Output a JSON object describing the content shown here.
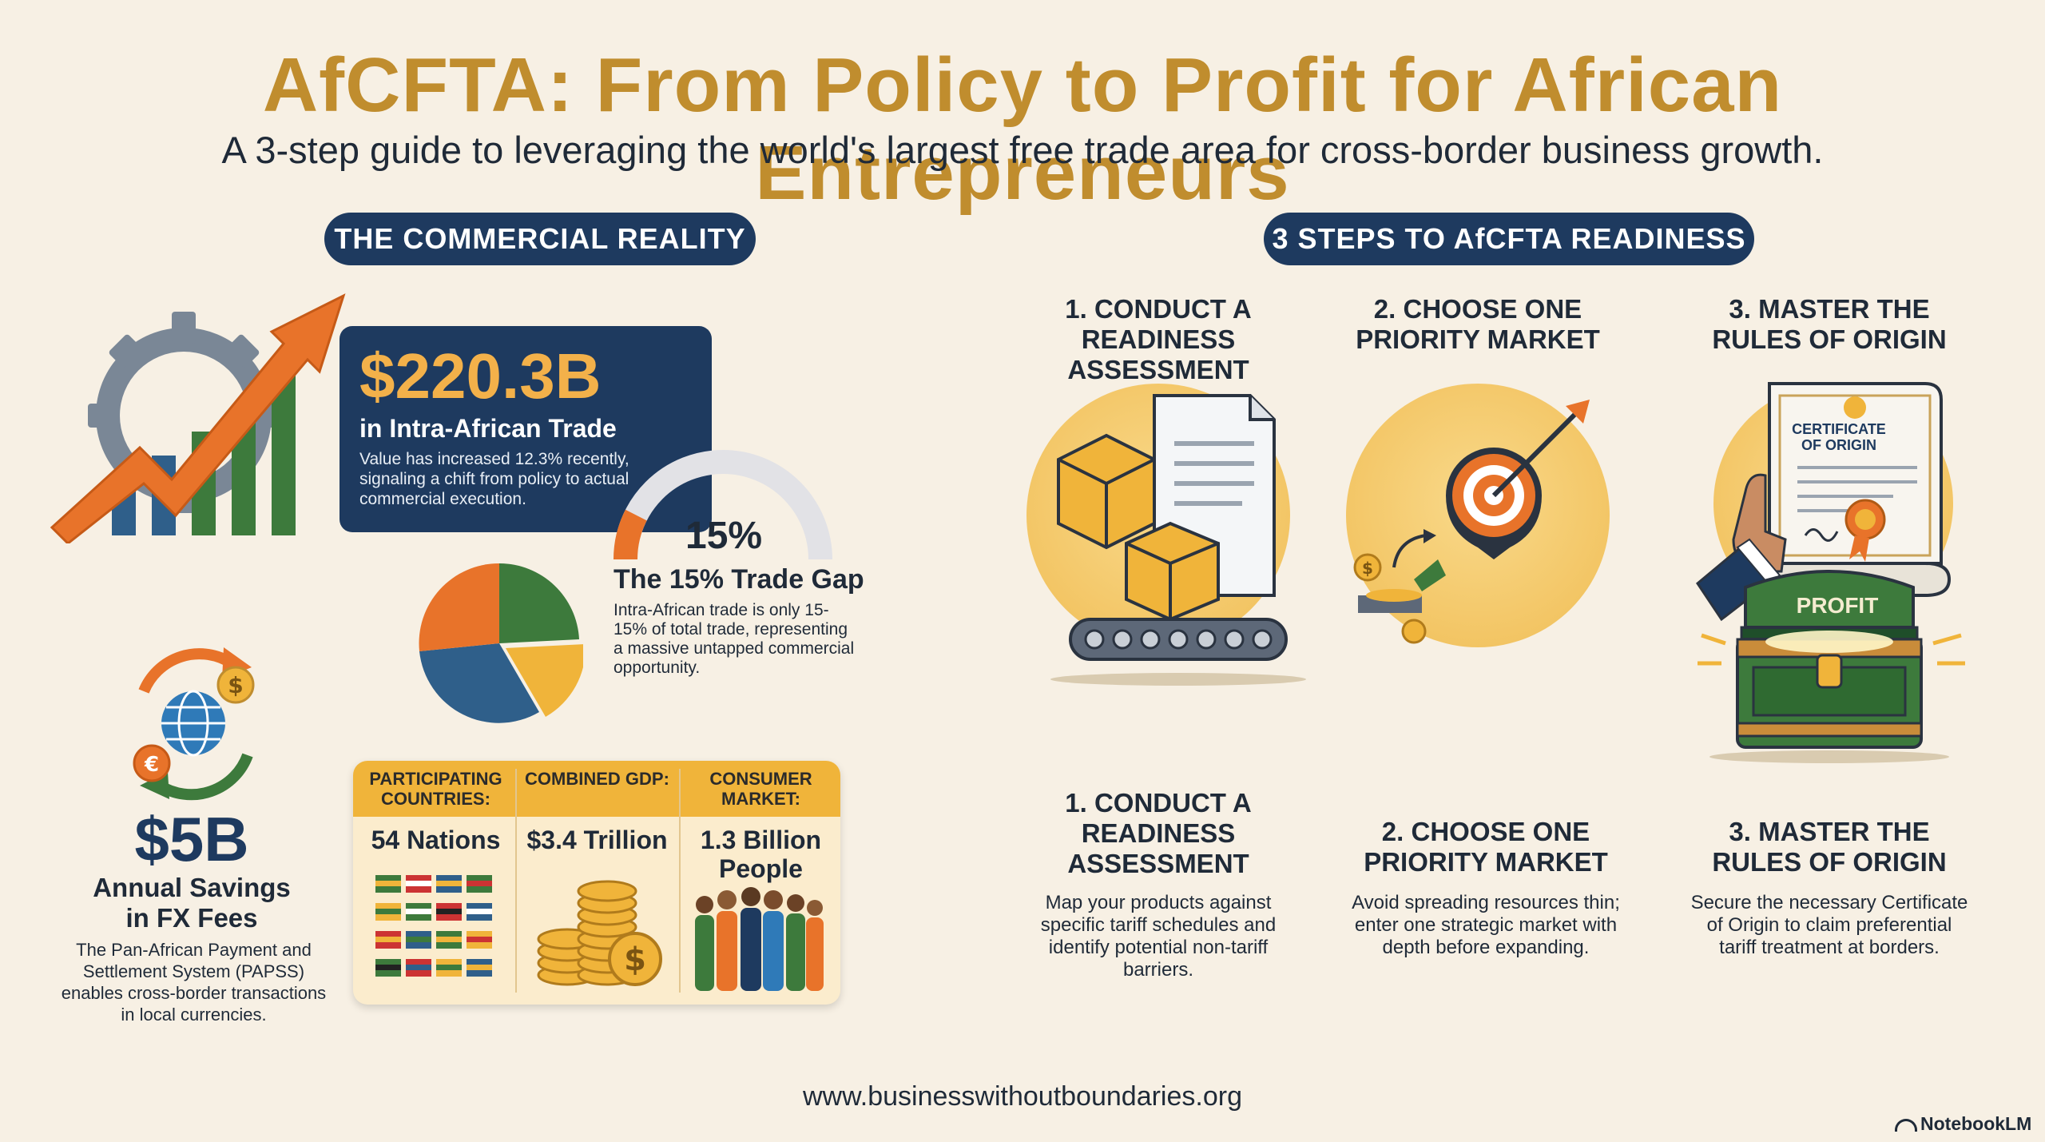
{
  "header": {
    "title": "AfCFTA: From Policy to Profit for African Entrepreneurs",
    "subtitle": "A 3-step guide to leveraging the world's largest free trade area for cross-border business growth."
  },
  "left": {
    "pill": "THE COMMERCIAL REALITY",
    "trade": {
      "value": "$220.3B",
      "label": "in Intra-African Trade",
      "desc": "Value has increased 12.3% recently, signaling a chift from policy to actual commercial execution."
    },
    "gap": {
      "percent": "15%",
      "gauge_fraction": 0.15,
      "title": "The 15% Trade Gap",
      "desc": "Intra-African trade is only 15-15% of total trade, representing a massive untapped commercial opportunity."
    },
    "fx": {
      "value": "$5B",
      "label": "Annual Savings in FX Fees",
      "desc": "The Pan-African Payment and Settlement System (PAPSS) enables cross-border transactions in local currencies."
    },
    "stats": [
      {
        "header": "PARTICIPATING COUNTRIES:",
        "value": "54 Nations"
      },
      {
        "header": "COMBINED GDP:",
        "value": "$3.4 Trillion"
      },
      {
        "header": "CONSUMER MARKET:",
        "value": "1.3 Billion People"
      }
    ]
  },
  "right": {
    "pill": "3 STEPS TO AfCFTA READINESS",
    "steps": [
      {
        "top": "1. CONDUCT A READINESS ASSESSMENT",
        "title": "1. CONDUCT A READINESS ASSESSMENT",
        "desc": "Map your products against specific tariff schedules and identify potential non-tariff barriers."
      },
      {
        "top": "2. CHOOSE ONE PRIORITY MARKET",
        "title": "2. CHOOSE ONE PRIORITY MARKET",
        "desc": "Avoid spreading resources thin; enter one strategic market with depth before expanding."
      },
      {
        "top": "3. MASTER THE RULES OF ORIGIN",
        "title": "3. MASTER THE RULES OF ORIGIN",
        "desc": "Secure the necessary Certificate of Origin to claim preferential tariff treatment at borders."
      }
    ],
    "certificate_text": "CERTIFICATE OF ORIGIN",
    "chest_text": "PROFIT"
  },
  "footer": {
    "url": "www.businesswithoutboundaries.org",
    "brand": "NotebookLM"
  },
  "colors": {
    "gold": "#c08d2e",
    "navy": "#1e3a5f",
    "amber": "#f0b43a",
    "green": "#3d7a3c",
    "orange": "#e8732a",
    "background": "#f7f0e4"
  }
}
